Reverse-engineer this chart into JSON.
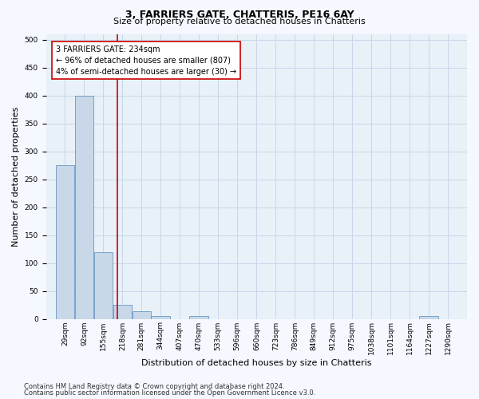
{
  "title1": "3, FARRIERS GATE, CHATTERIS, PE16 6AY",
  "title2": "Size of property relative to detached houses in Chatteris",
  "xlabel": "Distribution of detached houses by size in Chatteris",
  "ylabel": "Number of detached properties",
  "bar_color": "#c8d8e8",
  "bar_edge_color": "#5588bb",
  "bin_labels": [
    "29sqm",
    "92sqm",
    "155sqm",
    "218sqm",
    "281sqm",
    "344sqm",
    "407sqm",
    "470sqm",
    "533sqm",
    "596sqm",
    "660sqm",
    "723sqm",
    "786sqm",
    "849sqm",
    "912sqm",
    "975sqm",
    "1038sqm",
    "1101sqm",
    "1164sqm",
    "1227sqm",
    "1290sqm"
  ],
  "bar_values": [
    275,
    400,
    120,
    25,
    13,
    5,
    0,
    5,
    0,
    0,
    0,
    0,
    0,
    0,
    0,
    0,
    0,
    0,
    0,
    5,
    0
  ],
  "bin_edges": [
    29,
    92,
    155,
    218,
    281,
    344,
    407,
    470,
    533,
    596,
    660,
    723,
    786,
    849,
    912,
    975,
    1038,
    1101,
    1164,
    1227,
    1290
  ],
  "property_size": 234,
  "vline_color": "#cc0000",
  "annotation_text": "3 FARRIERS GATE: 234sqm\n← 96% of detached houses are smaller (807)\n4% of semi-detached houses are larger (30) →",
  "annotation_box_color": "#ffffff",
  "annotation_box_edge_color": "#cc0000",
  "ylim": [
    0,
    510
  ],
  "yticks": [
    0,
    50,
    100,
    150,
    200,
    250,
    300,
    350,
    400,
    450,
    500
  ],
  "footer1": "Contains HM Land Registry data © Crown copyright and database right 2024.",
  "footer2": "Contains public sector information licensed under the Open Government Licence v3.0.",
  "bg_color": "#f5f8ff",
  "plot_bg_color": "#e8f0f8",
  "grid_color": "#c8d8e8",
  "title1_fontsize": 9,
  "title2_fontsize": 8,
  "xlabel_fontsize": 8,
  "ylabel_fontsize": 8,
  "tick_fontsize": 6.5,
  "annotation_fontsize": 7,
  "footer_fontsize": 6
}
